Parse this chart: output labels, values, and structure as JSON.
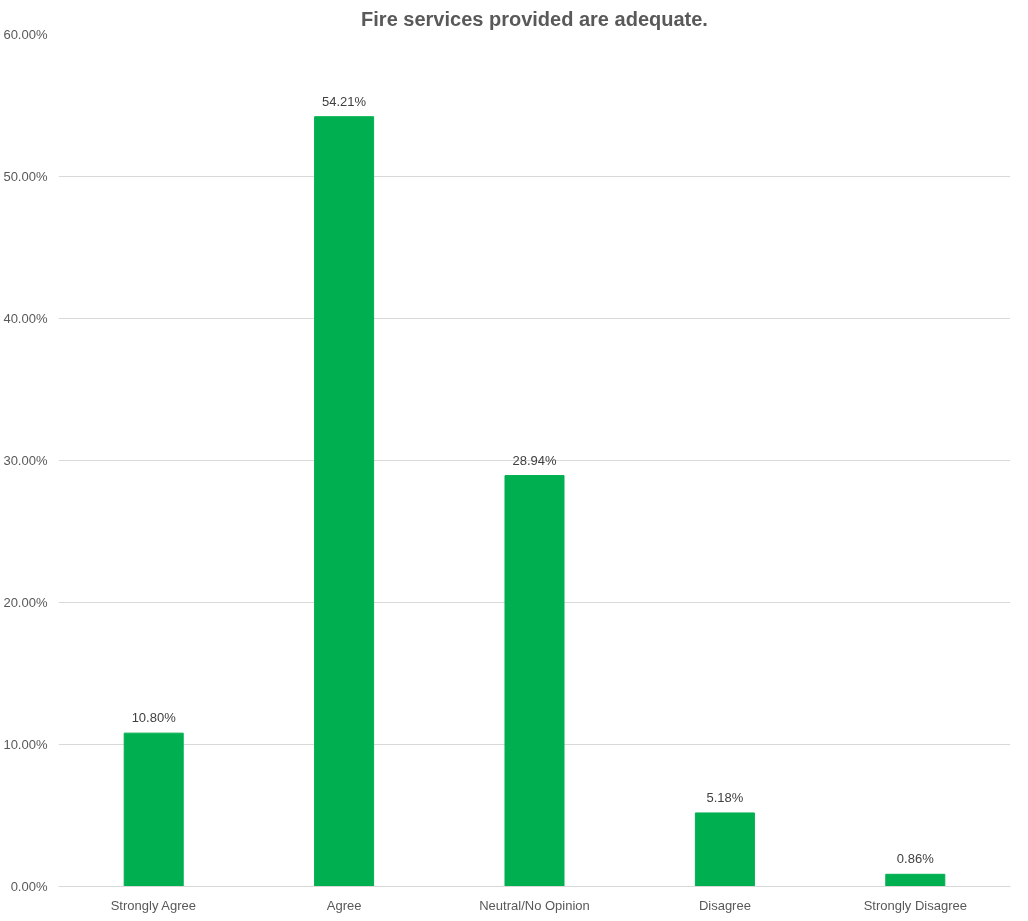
{
  "chart_data": {
    "type": "bar",
    "title": "Fire services provided are adequate.",
    "categories": [
      "Strongly Agree",
      "Agree",
      "Neutral/No Opinion",
      "Disagree",
      "Strongly Disagree"
    ],
    "values": [
      10.8,
      54.21,
      28.94,
      5.18,
      0.86
    ],
    "value_labels": [
      "10.80%",
      "54.21%",
      "28.94%",
      "5.18%",
      "0.86%"
    ],
    "color": "#00b050",
    "ylim": [
      0,
      60
    ],
    "yticks": [
      {
        "value": 0,
        "label": "0.00%"
      },
      {
        "value": 10,
        "label": "10.00%"
      },
      {
        "value": 20,
        "label": "20.00%"
      },
      {
        "value": 30,
        "label": "30.00%"
      },
      {
        "value": 40,
        "label": "40.00%"
      },
      {
        "value": 50,
        "label": "50.00%"
      },
      {
        "value": 60,
        "label": "60.00%"
      }
    ],
    "grid": "y"
  }
}
